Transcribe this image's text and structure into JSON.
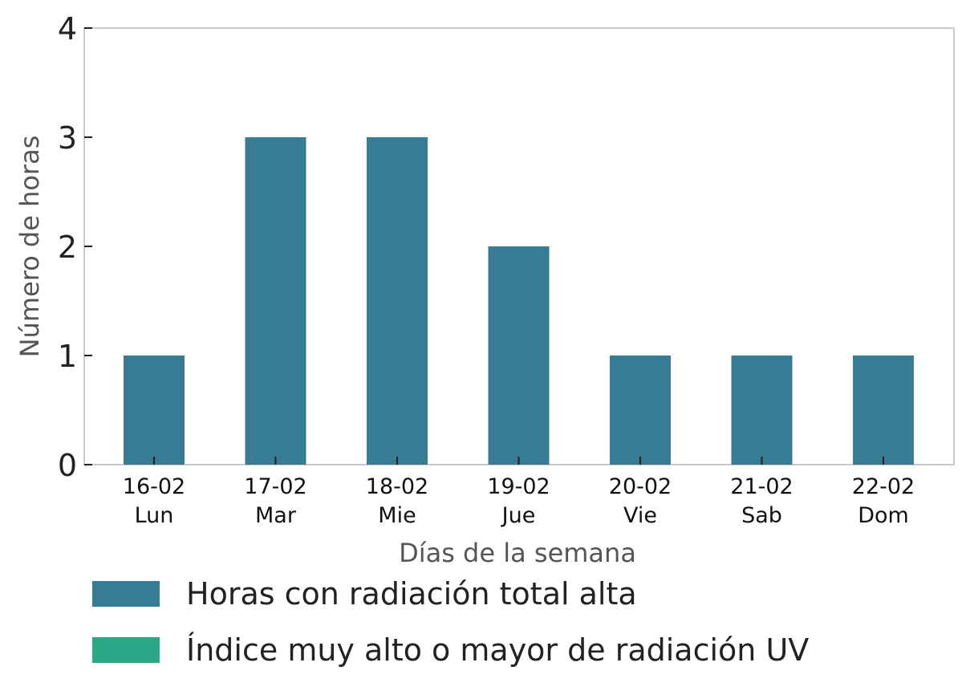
{
  "chart_data": {
    "type": "bar",
    "categories": [
      [
        "16-02",
        "Lun"
      ],
      [
        "17-02",
        "Mar"
      ],
      [
        "18-02",
        "Mie"
      ],
      [
        "19-02",
        "Jue"
      ],
      [
        "20-02",
        "Vie"
      ],
      [
        "21-02",
        "Sab"
      ],
      [
        "22-02",
        "Dom"
      ]
    ],
    "series": [
      {
        "name": "Horas con radiación total alta",
        "color": "#387b94",
        "values": [
          1,
          3,
          3,
          2,
          1,
          1,
          1
        ]
      },
      {
        "name": "Índice muy alto o mayor de radiación UV",
        "color": "#2aa885",
        "values": [
          0,
          0,
          0,
          0,
          0,
          0,
          0
        ]
      }
    ],
    "xlabel": "Días de la semana",
    "ylabel": "Número de horas",
    "ylim": [
      0,
      4
    ],
    "yticks": [
      "0",
      "1",
      "2",
      "3",
      "4"
    ],
    "grid": false,
    "legend_position": "bottom-left"
  }
}
